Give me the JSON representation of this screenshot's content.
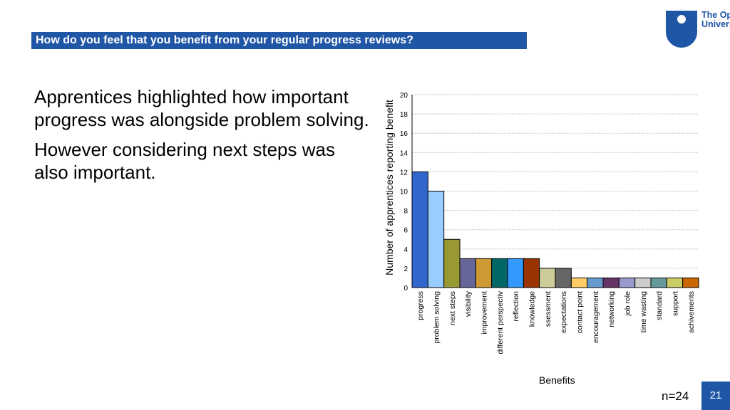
{
  "slide": {
    "title": "How do you feel that you benefit from your regular progress reviews?",
    "logo_text_1": "The Open",
    "logo_text_2": "University",
    "paragraphs": [
      "Apprentices highlighted how important progress was alongside problem solving.",
      "However considering next steps was also important."
    ],
    "sample_size": "n=24",
    "page_number": "21"
  },
  "colors": {
    "brand": "#1f56a5",
    "grid": "#aaaaaa"
  },
  "chart_data": {
    "type": "bar",
    "title": "",
    "xlabel": "Benefits",
    "ylabel": "Number of apprentices reporting benefit",
    "ylim": [
      0,
      20
    ],
    "yticks": [
      0,
      2,
      4,
      6,
      8,
      10,
      12,
      14,
      16,
      18,
      20
    ],
    "grid": true,
    "categories": [
      "progress",
      "problem solving",
      "next steps",
      "visibility",
      "improvement",
      "different perspectiv",
      "reflection",
      "knowledge",
      "ssessment",
      "expectations",
      "contact point",
      "encouragement",
      "networking",
      "job role",
      "time wasting",
      "standard",
      "support",
      "achivements"
    ],
    "values": [
      12,
      10,
      5,
      3,
      3,
      3,
      3,
      3,
      2,
      2,
      1,
      1,
      1,
      1,
      1,
      1,
      1,
      1
    ],
    "bar_colors": [
      "#3366cc",
      "#99ccff",
      "#999933",
      "#666699",
      "#cc9933",
      "#006666",
      "#3399ff",
      "#993300",
      "#cccc99",
      "#666666",
      "#ffcc66",
      "#6699cc",
      "#663366",
      "#9999cc",
      "#cccccc",
      "#669999",
      "#cccc66",
      "#cc6600"
    ]
  }
}
